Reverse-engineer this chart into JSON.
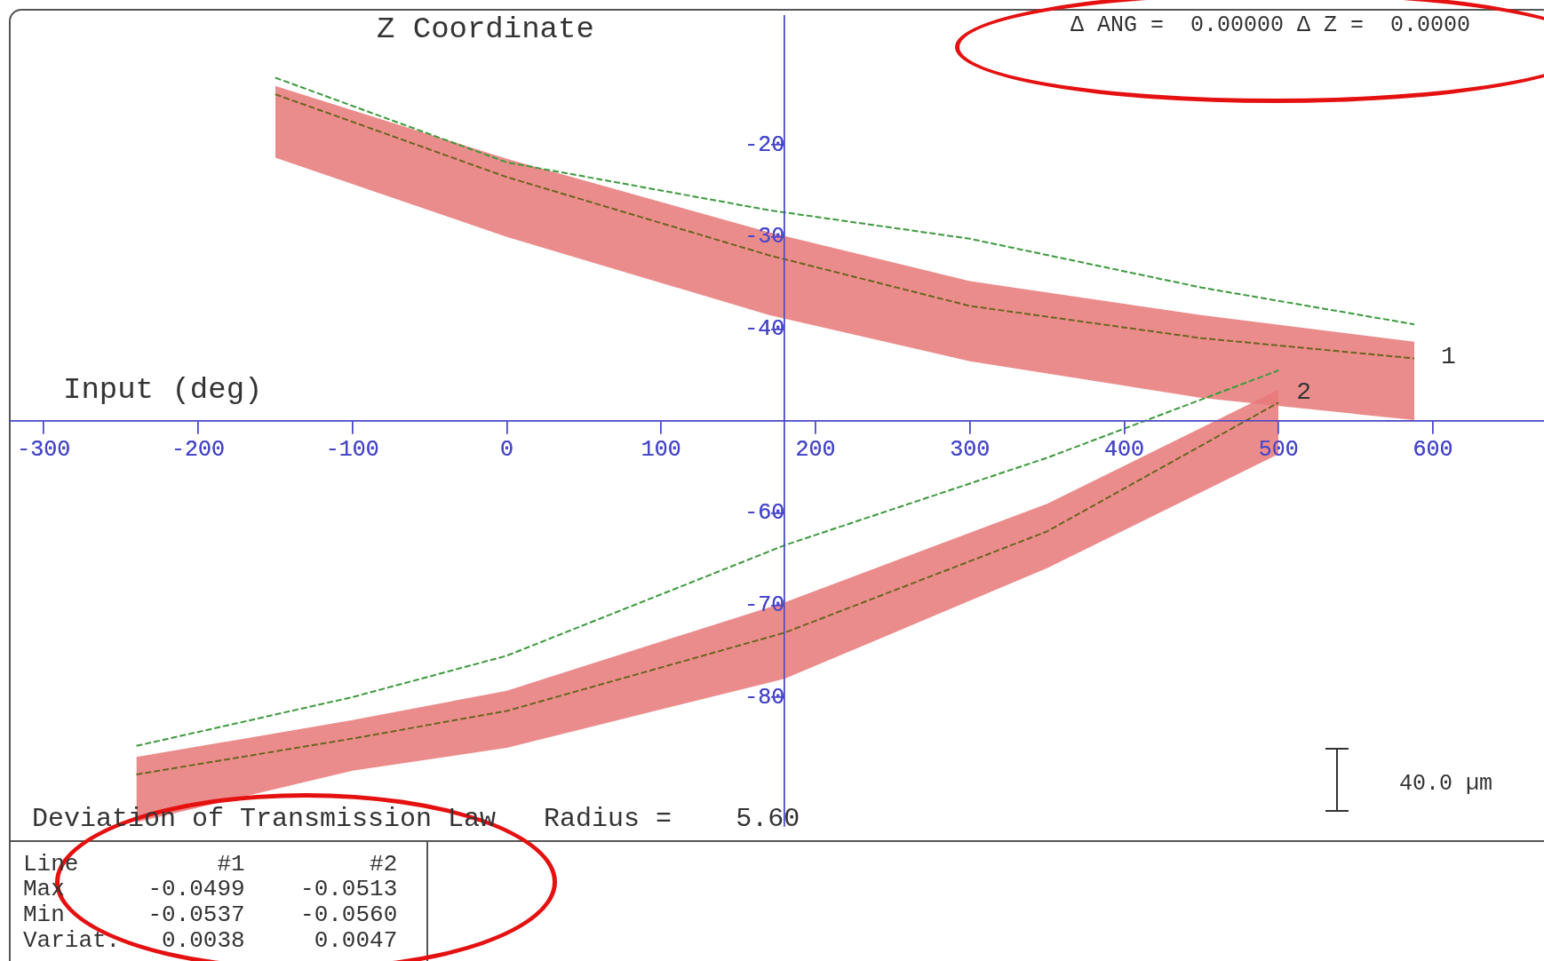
{
  "chart_data": {
    "type": "line",
    "title": "Z Coordinate",
    "xlabel": "Input (deg)",
    "xlim": [
      -322,
      672
    ],
    "xticks": [
      -300,
      -200,
      -100,
      0,
      100,
      200,
      300,
      400,
      500,
      600
    ],
    "ylim": [
      -94,
      -6
    ],
    "yticks": [
      -20,
      -30,
      -40,
      -60,
      -70,
      -80
    ],
    "grid": false,
    "legend": false,
    "marker": "none",
    "annotations": [
      "Δ ANG =  0.00000 Δ Z =  0.0000",
      "Deviation of Transmission Law   Radius =    5.60",
      "40.0 µm",
      "Line          #1         #2",
      "Max      -0.0499    -0.0513",
      "Min      -0.0537    -0.0560",
      "Variat.   0.0038     0.0047"
    ],
    "series": [
      {
        "name": "1",
        "color": "#6b6420",
        "line_style": "dashed",
        "x": [
          -150,
          0,
          170,
          300,
          450,
          588
        ],
        "values": [
          -14.5,
          -23.5,
          -32,
          -37.5,
          -41,
          -43.2
        ],
        "lower": [
          -21.4,
          -30,
          -38.5,
          -43.5,
          -47.5,
          -49.9
        ],
        "upper": [
          -13.6,
          -21.5,
          -29.5,
          -34.8,
          -38.5,
          -41.4
        ]
      },
      {
        "color": "#3c9a3c",
        "line_style": "dashed",
        "x": [
          -150,
          0,
          170,
          300,
          450,
          588
        ],
        "values": [
          -12.7,
          -21.9,
          -27.1,
          -30.2,
          -35.5,
          -39.5
        ]
      },
      {
        "name": "2",
        "color": "#6b6420",
        "line_style": "dashed",
        "x": [
          -240,
          -100,
          0,
          180,
          350,
          500
        ],
        "values": [
          -88.4,
          -84.5,
          -81.5,
          -73,
          -62,
          -48
        ],
        "lower": [
          -93.6,
          -88,
          -85.5,
          -78,
          -66,
          -53.6
        ],
        "upper": [
          -86.5,
          -82.5,
          -79.3,
          -69.7,
          -59,
          -46.6
        ]
      },
      {
        "color": "#3c9a3c",
        "line_style": "dashed",
        "x": [
          -240,
          -100,
          0,
          180,
          350,
          500
        ],
        "values": [
          -85.3,
          -80,
          -75.5,
          -63.5,
          -54,
          -44.5
        ]
      }
    ]
  }
}
